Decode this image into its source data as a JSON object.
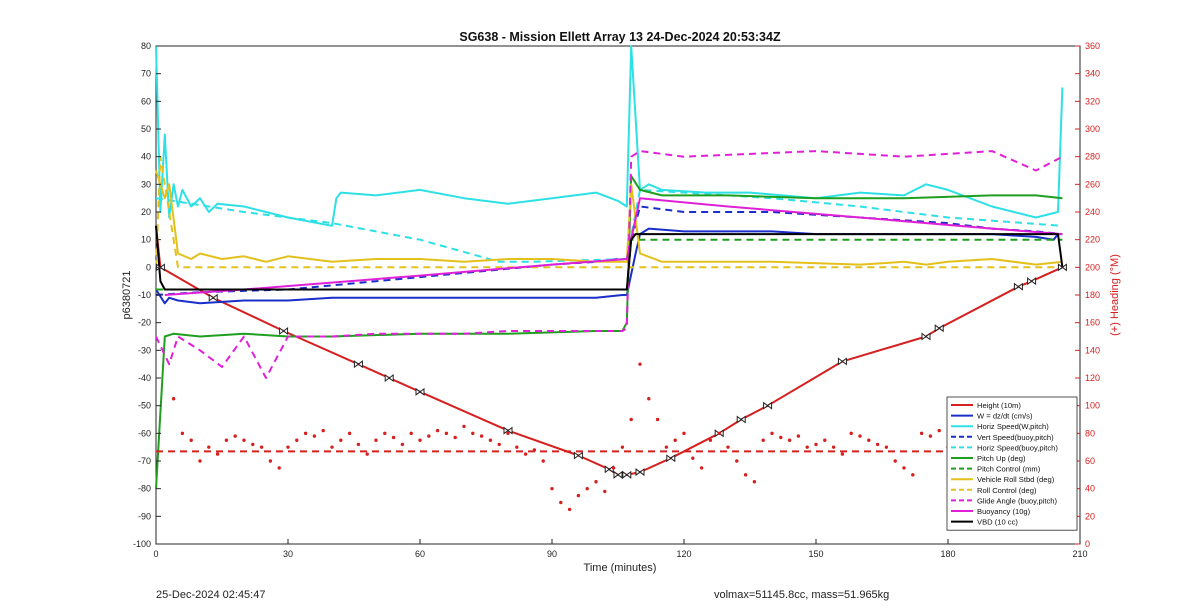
{
  "chart_data": {
    "type": "line",
    "title": "SG638 - Mission Ellett Array 13 24-Dec-2024 20:53:34Z",
    "xlabel": "Time (minutes)",
    "ylabel": "p6380721",
    "ylabel_right": "(+) Heading (°M)",
    "xlim": [
      0,
      210
    ],
    "ylim": [
      -100,
      80
    ],
    "ylim_right": [
      0,
      360
    ],
    "xticks": [
      "0",
      "30",
      "60",
      "90",
      "120",
      "150",
      "180",
      "210"
    ],
    "yticks": [
      "80",
      "70",
      "60",
      "50",
      "40",
      "30",
      "20",
      "10",
      "0",
      "-10",
      "-20",
      "-30",
      "-40",
      "-50",
      "-60",
      "-70",
      "-80",
      "-90",
      "-100"
    ],
    "yticks_right": [
      "360",
      "340",
      "320",
      "300",
      "280",
      "260",
      "240",
      "220",
      "200",
      "180",
      "160",
      "140",
      "120",
      "100",
      "80",
      "60",
      "40",
      "20",
      "0"
    ],
    "grid": false,
    "legend_position": "bottom-right",
    "series": [
      {
        "name": "Height (10m)",
        "color": "#d62020",
        "style": "solid",
        "x": [
          0,
          1,
          13,
          29,
          46,
          53,
          60,
          80,
          96,
          103,
          105,
          107,
          110,
          117,
          128,
          133,
          139,
          156,
          175,
          178,
          196,
          199,
          206
        ],
        "y": [
          15,
          0,
          -11,
          -23,
          -35,
          -40,
          -45,
          -59,
          -68,
          -73,
          -75,
          -75,
          -74,
          -69,
          -60,
          -55,
          -50,
          -34,
          -25,
          -22,
          -7,
          -5,
          0
        ]
      },
      {
        "name": "W = dz/dt (cm/s)",
        "color": "#1a2fc9",
        "style": "solid",
        "x": [
          0,
          2,
          3,
          5,
          10,
          20,
          30,
          40,
          60,
          80,
          90,
          100,
          106,
          107,
          109,
          110,
          112,
          120,
          130,
          140,
          150,
          160,
          170,
          180,
          190,
          200,
          204,
          205,
          206
        ],
        "y": [
          -8,
          -13,
          -11,
          -12,
          -13,
          -12,
          -12,
          -11,
          -11,
          -11,
          -11,
          -11,
          -10,
          -10,
          5,
          12,
          14,
          13,
          13,
          13,
          12,
          12,
          12,
          12,
          12,
          11,
          10,
          12,
          12
        ]
      },
      {
        "name": "Horiz Speed(W,pitch)",
        "color": "#2de0e6",
        "style": "solid",
        "x": [
          0,
          1,
          2,
          3,
          4,
          5,
          6,
          8,
          10,
          12,
          14,
          20,
          25,
          30,
          40,
          41,
          42,
          50,
          60,
          70,
          80,
          90,
          100,
          105,
          107,
          108,
          110,
          112,
          115,
          125,
          135,
          150,
          160,
          170,
          175,
          180,
          185,
          190,
          195,
          200,
          205,
          206
        ],
        "y": [
          80,
          20,
          48,
          18,
          30,
          22,
          28,
          22,
          25,
          20,
          23,
          22,
          20,
          18,
          15,
          25,
          27,
          26,
          28,
          25,
          23,
          25,
          27,
          24,
          22,
          80,
          28,
          30,
          28,
          27,
          27,
          25,
          27,
          26,
          30,
          28,
          25,
          22,
          20,
          18,
          20,
          65
        ]
      },
      {
        "name": "Vert Speed(buoy,pitch)",
        "color": "#1a2fc9",
        "style": "dashed",
        "x": [
          0,
          10,
          30,
          50,
          70,
          90,
          100,
          105,
          107,
          110,
          120,
          140,
          160,
          180,
          190,
          200,
          206
        ],
        "y": [
          -10,
          -9,
          -8,
          -5,
          -2,
          1,
          2,
          3,
          3,
          22,
          20,
          20,
          18,
          16,
          14,
          13,
          12
        ]
      },
      {
        "name": "Horiz Speed(buoy,pitch)",
        "color": "#2de0e6",
        "style": "dashed",
        "x": [
          0,
          20,
          40,
          60,
          78,
          82,
          85,
          107,
          110,
          120,
          140,
          160,
          180,
          206
        ],
        "y": [
          25,
          20,
          16,
          10,
          2,
          2,
          2,
          3,
          28,
          27,
          25,
          22,
          18,
          15
        ]
      },
      {
        "name": "Pitch Up (deg)",
        "color": "#1f9e1f",
        "style": "solid",
        "x": [
          0,
          2,
          4,
          10,
          20,
          30,
          40,
          60,
          80,
          100,
          106,
          107,
          108,
          110,
          115,
          130,
          150,
          170,
          190,
          200,
          206
        ],
        "y": [
          -80,
          -25,
          -24,
          -25,
          -24,
          -25,
          -25,
          -24,
          -24,
          -23,
          -23,
          -20,
          33,
          28,
          26,
          26,
          25,
          25,
          26,
          26,
          25
        ]
      },
      {
        "name": "Pitch Control (mm)",
        "color": "#1f9e1f",
        "style": "dashed",
        "x": [
          0,
          107,
          108,
          110,
          206
        ],
        "y": [
          -8,
          -8,
          10,
          10,
          10
        ]
      },
      {
        "name": "Vehicle Roll Stbd (deg)",
        "color": "#e3c01b",
        "style": "solid",
        "x": [
          0,
          1,
          2,
          3,
          5,
          8,
          10,
          15,
          20,
          25,
          30,
          40,
          50,
          60,
          70,
          80,
          90,
          100,
          107,
          108,
          110,
          115,
          120,
          140,
          160,
          170,
          175,
          180,
          190,
          200,
          206
        ],
        "y": [
          35,
          30,
          25,
          30,
          5,
          3,
          5,
          3,
          4,
          2,
          4,
          2,
          3,
          3,
          2,
          3,
          3,
          2,
          2,
          30,
          5,
          2,
          2,
          2,
          1,
          2,
          1,
          2,
          3,
          1,
          2
        ]
      },
      {
        "name": "Roll Control (deg)",
        "color": "#e3c01b",
        "style": "dashed",
        "x": [
          0,
          1,
          5,
          6,
          107,
          108,
          206
        ],
        "y": [
          0,
          40,
          0,
          0,
          0,
          0,
          0
        ]
      },
      {
        "name": "Glide Angle (buoy,pitch)",
        "color": "#e020d8",
        "style": "dashed",
        "x": [
          0,
          3,
          5,
          10,
          15,
          20,
          25,
          30,
          40,
          50,
          60,
          70,
          80,
          90,
          100,
          106,
          107,
          108,
          110,
          120,
          150,
          160,
          170,
          180,
          190,
          200,
          206
        ],
        "y": [
          -25,
          -35,
          -25,
          -30,
          -36,
          -25,
          -40,
          -25,
          -25,
          -24,
          -24,
          -24,
          -23,
          -23,
          -23,
          -23,
          -22,
          40,
          42,
          40,
          42,
          41,
          40,
          41,
          42,
          35,
          40
        ]
      },
      {
        "name": "Buoyancy (10g)",
        "color": "#e020d8",
        "style": "solid",
        "x": [
          2,
          20,
          60,
          90,
          107,
          110,
          130,
          160,
          190,
          206
        ],
        "y": [
          -10,
          -8,
          -3,
          1,
          3,
          25,
          22,
          18,
          14,
          12
        ]
      },
      {
        "name": "VBD (10 cc)",
        "color": "#000000",
        "style": "solid",
        "x": [
          0,
          1,
          2,
          5,
          10,
          50,
          80,
          100,
          107,
          108,
          109,
          110,
          120,
          150,
          180,
          200,
          205,
          206
        ],
        "y": [
          15,
          -5,
          -8,
          -8,
          -8,
          -8,
          -8,
          -8,
          -8,
          10,
          12,
          12,
          12,
          12,
          12,
          12,
          12,
          0
        ]
      }
    ],
    "heading_markers": {
      "name": "Heading",
      "color": "#d62020",
      "x": [
        4,
        6,
        8,
        10,
        12,
        14,
        16,
        18,
        20,
        22,
        24,
        26,
        28,
        30,
        32,
        34,
        36,
        38,
        40,
        42,
        44,
        46,
        48,
        50,
        52,
        54,
        56,
        58,
        60,
        62,
        64,
        66,
        68,
        70,
        72,
        74,
        76,
        78,
        80,
        82,
        84,
        86,
        88,
        90,
        92,
        94,
        96,
        98,
        100,
        102,
        104,
        106,
        108,
        110,
        112,
        114,
        116,
        118,
        120,
        122,
        124,
        126,
        128,
        130,
        132,
        134,
        136,
        138,
        140,
        142,
        144,
        146,
        148,
        150,
        152,
        154,
        156,
        158,
        160,
        162,
        164,
        166,
        168,
        170,
        172,
        174,
        176,
        178,
        180,
        182,
        184,
        186,
        188,
        190,
        192,
        194,
        196,
        198,
        200,
        202,
        204,
        206
      ],
      "y": [
        105,
        80,
        75,
        60,
        70,
        65,
        75,
        78,
        75,
        72,
        70,
        60,
        55,
        70,
        75,
        80,
        78,
        82,
        70,
        75,
        80,
        72,
        65,
        75,
        80,
        77,
        72,
        80,
        75,
        78,
        82,
        80,
        77,
        85,
        80,
        78,
        75,
        72,
        80,
        70,
        65,
        68,
        60,
        40,
        30,
        25,
        35,
        40,
        45,
        38,
        55,
        70,
        90,
        130,
        105,
        90,
        70,
        75,
        80,
        62,
        55,
        75,
        80,
        70,
        60,
        50,
        45,
        75,
        80,
        77,
        75,
        78,
        70,
        72,
        75,
        70,
        65,
        80,
        78,
        75,
        72,
        70,
        60,
        55,
        50,
        80,
        78,
        82,
        70,
        65,
        72,
        80,
        85,
        75,
        70,
        78,
        80,
        75,
        70,
        72,
        78,
        65
      ],
      "mean_dashed_line": 67
    },
    "footer_left": "25-Dec-2024 02:45:47",
    "footer_right": "volmax=51145.8cc, mass=51.965kg"
  }
}
